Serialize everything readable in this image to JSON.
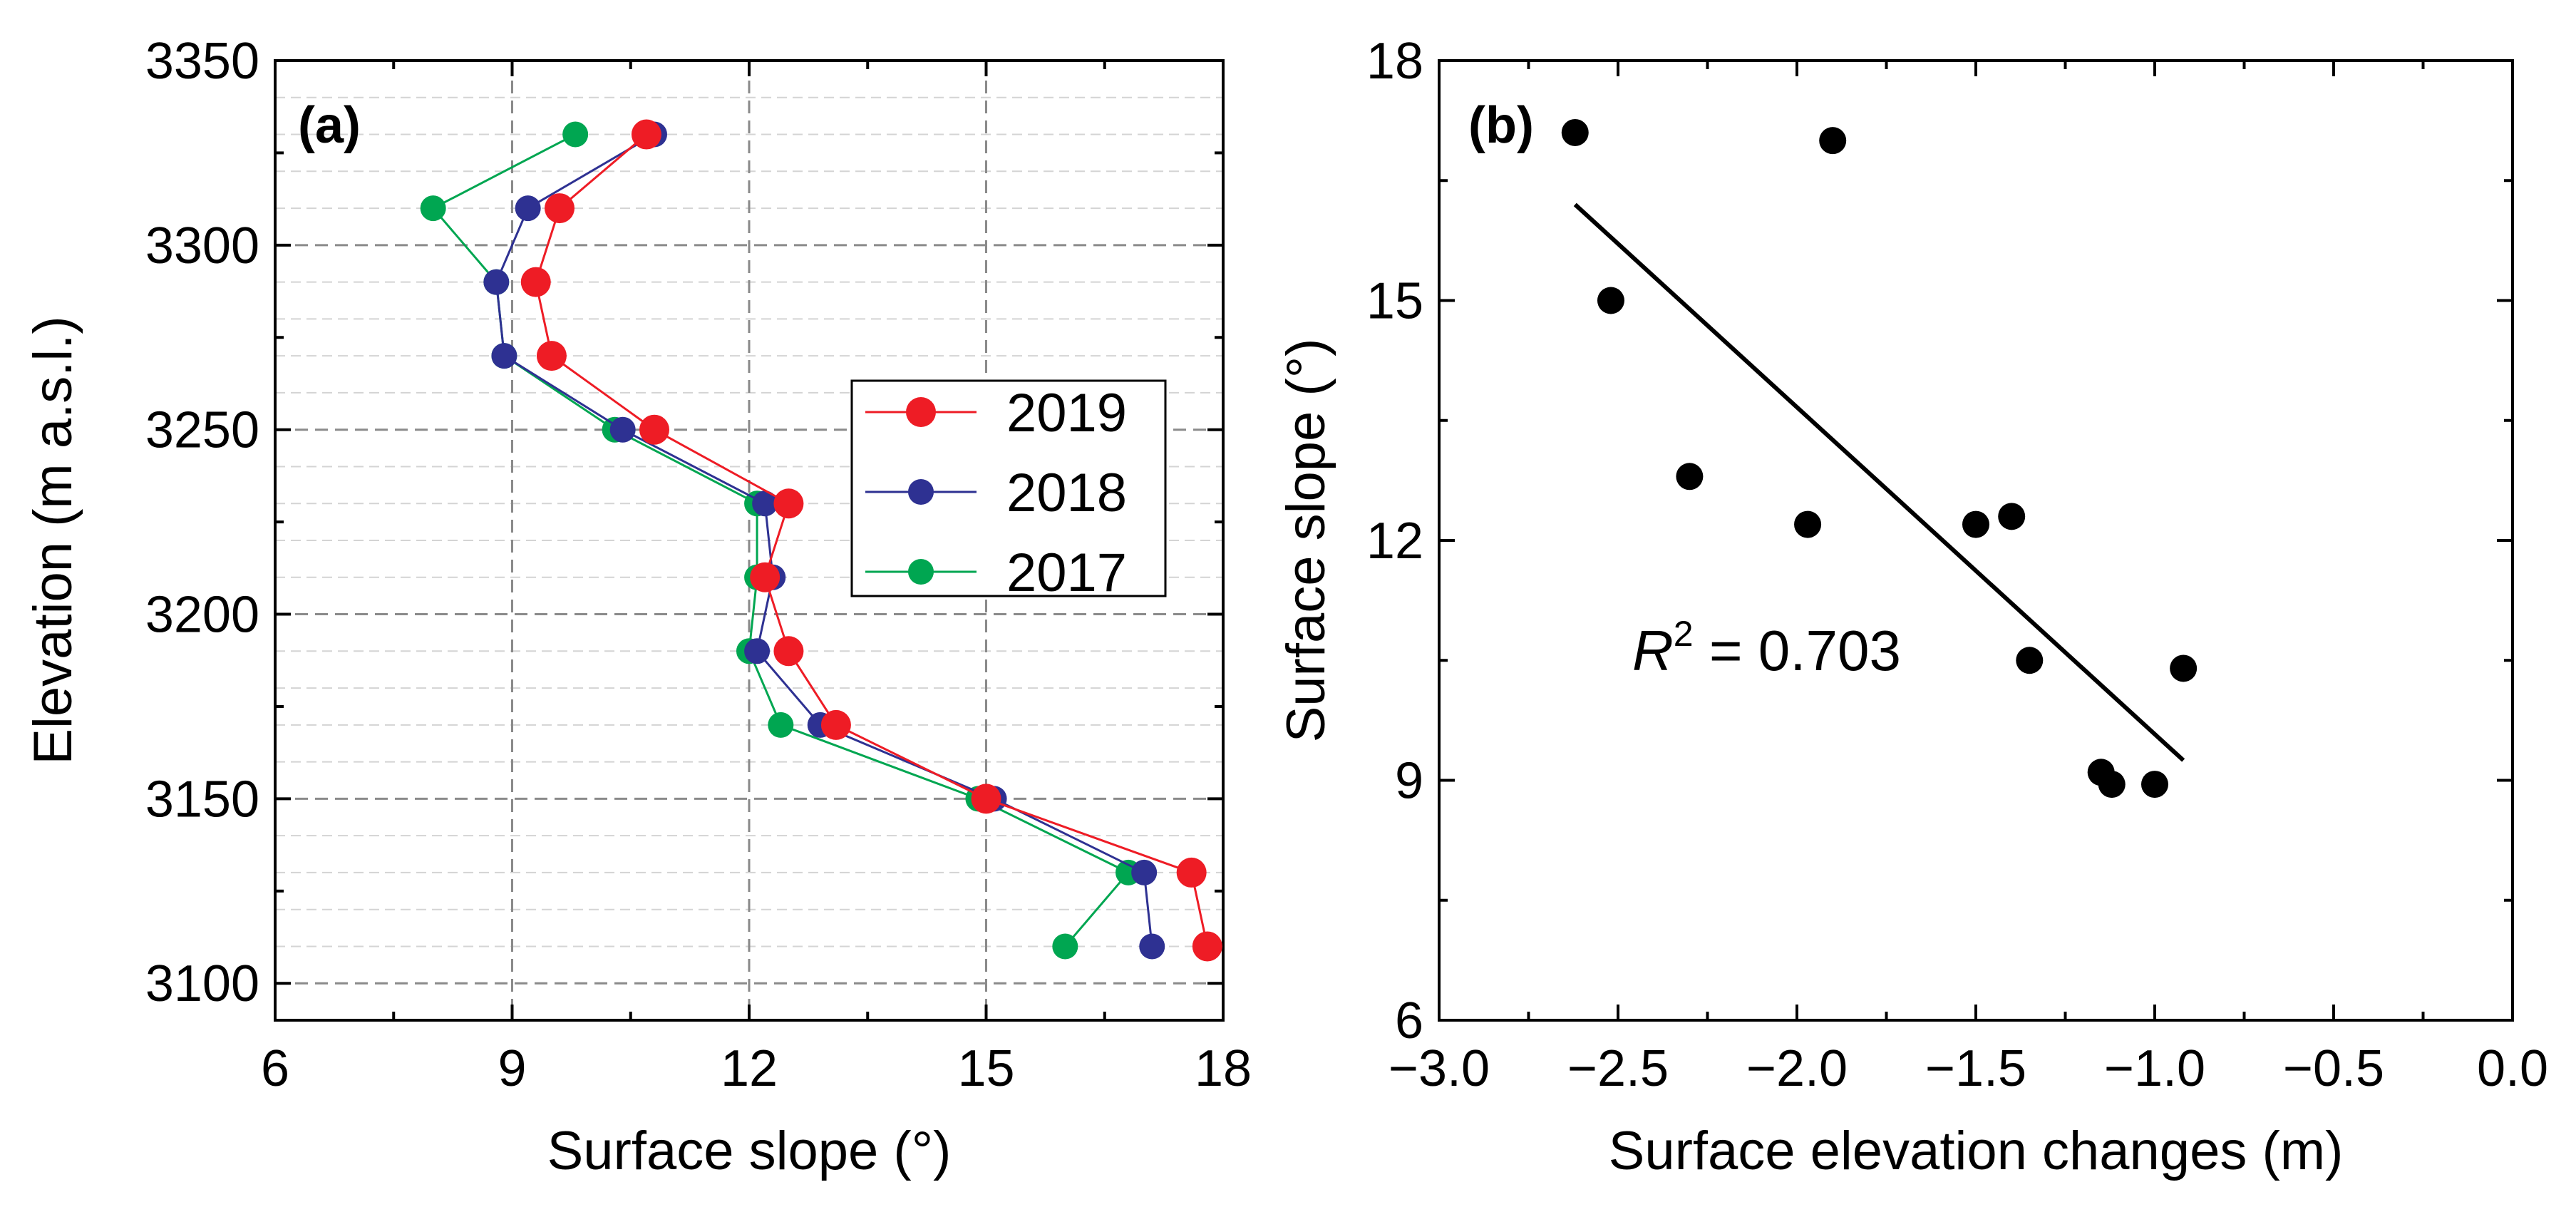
{
  "chart_data": [
    {
      "id": "a",
      "type": "line",
      "panel_label": "(a)",
      "xlabel": "Surface slope (°)",
      "ylabel": "Elevation (m a.s.l.)",
      "xlim": [
        6,
        18
      ],
      "ylim": [
        3090,
        3350
      ],
      "xticks": [
        6,
        9,
        12,
        15,
        18
      ],
      "yticks": [
        3100,
        3150,
        3200,
        3250,
        3300,
        3350
      ],
      "grid": true,
      "legend_position": "center-right",
      "y": [
        3330,
        3310,
        3290,
        3270,
        3250,
        3230,
        3210,
        3190,
        3170,
        3150,
        3130,
        3110
      ],
      "series": [
        {
          "name": "2019",
          "color": "#ee1c25",
          "x": [
            10.7,
            9.6,
            9.3,
            9.5,
            10.8,
            12.5,
            12.2,
            12.5,
            13.1,
            15.0,
            17.6,
            17.8
          ]
        },
        {
          "name": "2018",
          "color": "#2e3192",
          "x": [
            10.8,
            9.2,
            8.8,
            8.9,
            10.4,
            12.2,
            12.3,
            12.1,
            12.9,
            15.1,
            17.0,
            17.1
          ]
        },
        {
          "name": "2017",
          "color": "#00a651",
          "x": [
            9.8,
            8.0,
            8.8,
            8.9,
            10.3,
            12.1,
            12.1,
            12.0,
            12.4,
            14.9,
            16.8,
            16.0
          ]
        }
      ]
    },
    {
      "id": "b",
      "type": "scatter",
      "panel_label": "(b)",
      "xlabel": "Surface elevation changes (m)",
      "ylabel": "Surface slope (°)",
      "xlim": [
        -3.0,
        0.0
      ],
      "ylim": [
        6,
        18
      ],
      "xticks": [
        -3.0,
        -2.5,
        -2.0,
        -1.5,
        -1.0,
        -0.5,
        0.0
      ],
      "xtick_labels": [
        "−3.0",
        "−2.5",
        "−2.0",
        "−1.5",
        "−1.0",
        "−0.5",
        "0.0"
      ],
      "yticks": [
        6,
        9,
        12,
        15,
        18
      ],
      "grid": false,
      "points": [
        {
          "x": -2.62,
          "y": 17.1
        },
        {
          "x": -1.9,
          "y": 17.0
        },
        {
          "x": -2.52,
          "y": 15.0
        },
        {
          "x": -2.3,
          "y": 12.8
        },
        {
          "x": -1.97,
          "y": 12.2
        },
        {
          "x": -1.5,
          "y": 12.2
        },
        {
          "x": -1.4,
          "y": 12.3
        },
        {
          "x": -1.35,
          "y": 10.5
        },
        {
          "x": -0.92,
          "y": 10.4
        },
        {
          "x": -1.15,
          "y": 9.1
        },
        {
          "x": -1.12,
          "y": 8.95
        },
        {
          "x": -1.0,
          "y": 8.95
        }
      ],
      "fit_line": {
        "x": [
          -2.62,
          -0.92
        ],
        "y": [
          16.2,
          9.25
        ]
      },
      "annotation": {
        "r_letter": "R",
        "superscript": "2",
        "equals_value": " = 0.703"
      }
    }
  ]
}
